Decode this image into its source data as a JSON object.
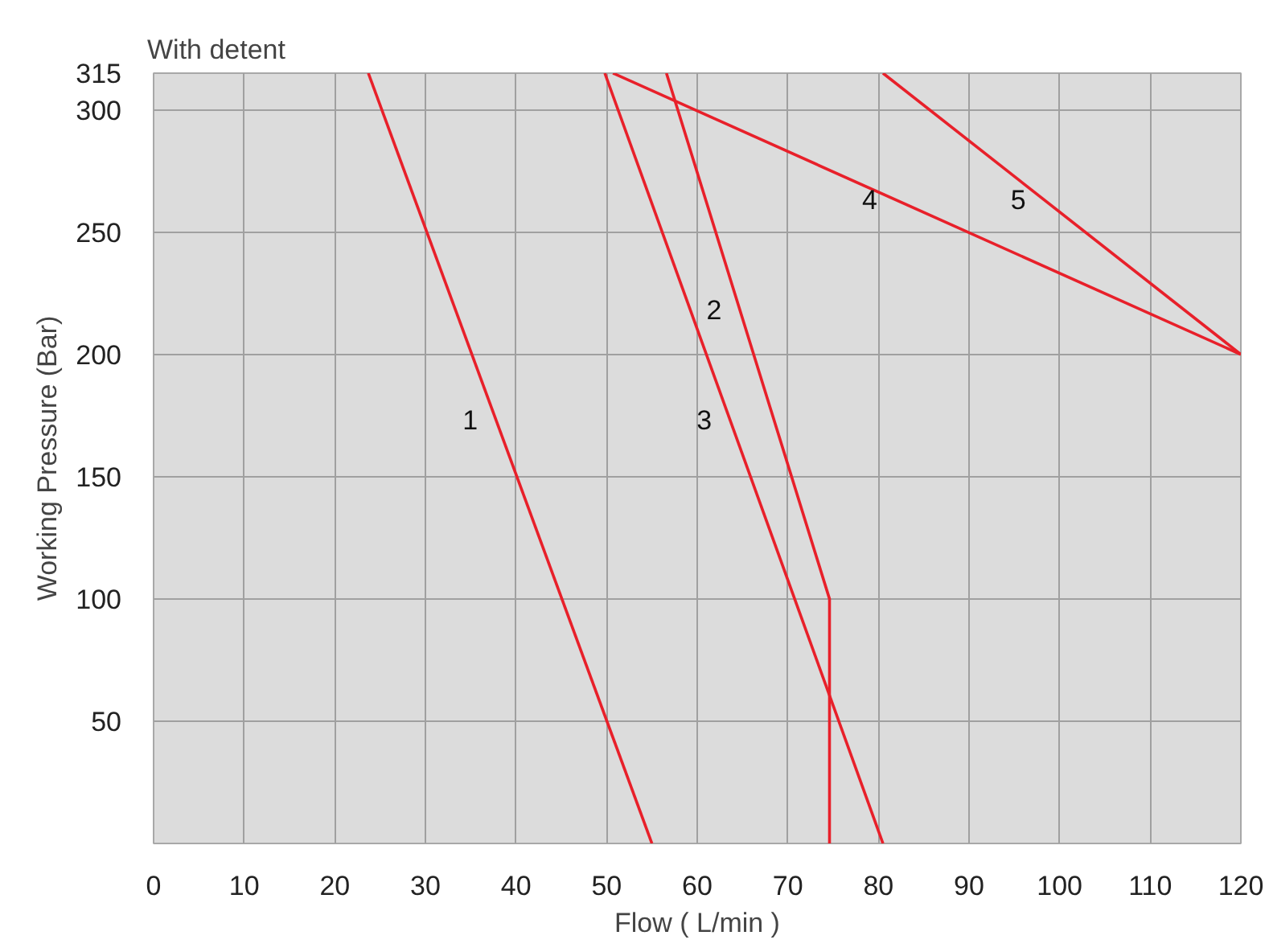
{
  "chart_data": {
    "type": "line",
    "title": "With detent",
    "xlabel": "Flow ( L/min )",
    "ylabel": "Working Pressure (Bar)",
    "xlim": [
      0,
      120
    ],
    "ylim": [
      0,
      315
    ],
    "xticks": [
      0,
      10,
      20,
      30,
      40,
      50,
      60,
      70,
      80,
      90,
      100,
      110,
      120
    ],
    "yticks": [
      50,
      100,
      150,
      200,
      250,
      300,
      315
    ],
    "grid": true,
    "marker": "none",
    "line_style": "solid",
    "series": [
      {
        "name": "1",
        "color": "#e8202a",
        "x": [
          23.7,
          55
        ],
        "values": [
          315,
          0
        ]
      },
      {
        "name": "2",
        "color": "#e8202a",
        "x": [
          56.6,
          74.6,
          74.6
        ],
        "values": [
          315,
          100,
          0
        ]
      },
      {
        "name": "3",
        "color": "#e8202a",
        "x": [
          49.8,
          80.5
        ],
        "values": [
          315,
          0
        ]
      },
      {
        "name": "4",
        "color": "#e8202a",
        "x": [
          50.7,
          120
        ],
        "values": [
          315,
          200
        ]
      },
      {
        "name": "5",
        "color": "#e8202a",
        "x": [
          80.5,
          120
        ],
        "values": [
          315,
          200
        ]
      }
    ]
  }
}
